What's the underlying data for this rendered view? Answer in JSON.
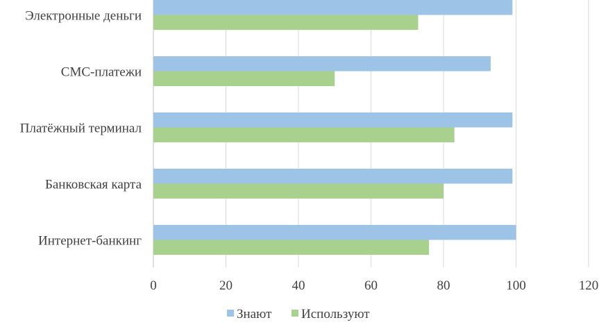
{
  "chart_data": {
    "type": "bar",
    "orientation": "horizontal",
    "title": "",
    "xlabel": "",
    "ylabel": "",
    "categories": [
      "Электронные деньги",
      "СМС-платежи",
      "Платёжный терминал",
      "Банковская карта",
      "Интернет-банкинг"
    ],
    "series": [
      {
        "name": "Знают",
        "color": "#9dc3e6",
        "values": [
          99,
          93,
          99,
          99,
          100
        ]
      },
      {
        "name": "Используют",
        "color": "#a9d18e",
        "values": [
          73,
          50,
          83,
          80,
          76
        ]
      }
    ],
    "xlim": [
      0,
      120
    ],
    "xticks": [
      0,
      20,
      40,
      60,
      80,
      100,
      120
    ],
    "grid": true,
    "legend": "bottom"
  }
}
